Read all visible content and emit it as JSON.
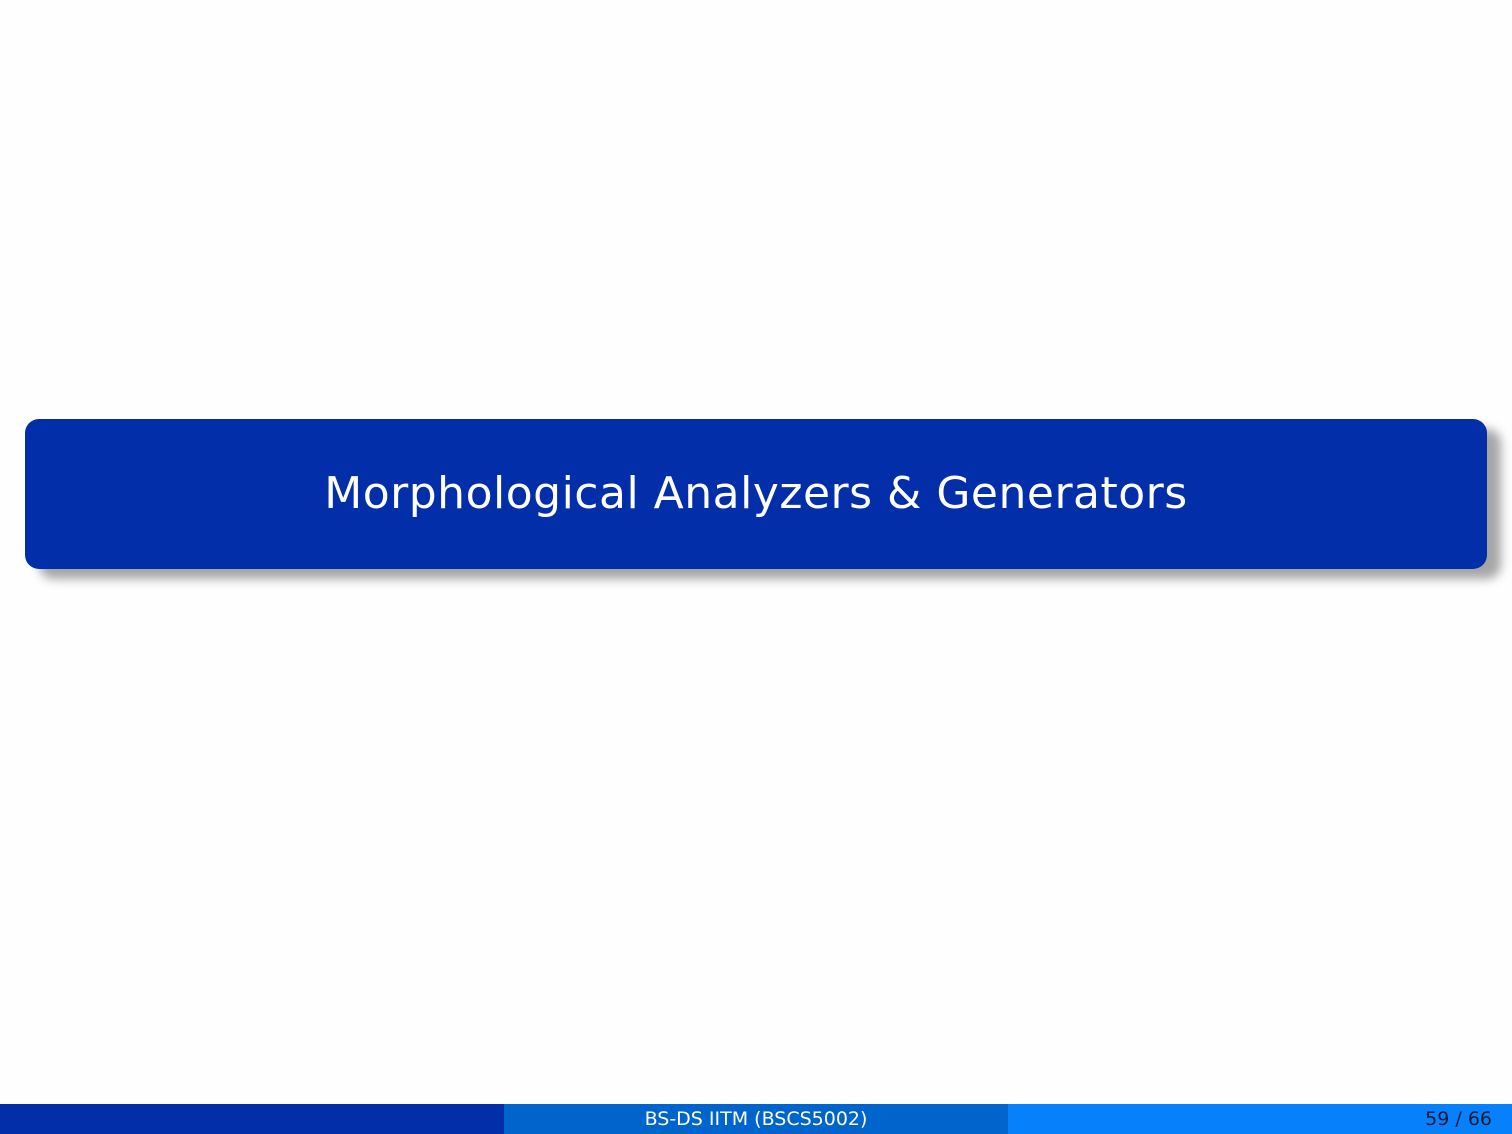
{
  "slide": {
    "section_title": "Morphological Analyzers & Generators"
  },
  "footer": {
    "left_text": "",
    "center_text": "BS-DS IITM (BSCS5002)",
    "page_indicator": "59 / 66"
  },
  "colors": {
    "banner": "#022fa9",
    "footer_left": "#022fa9",
    "footer_mid": "#0064cd",
    "footer_right": "#0681fb",
    "background": "#fefefe"
  }
}
